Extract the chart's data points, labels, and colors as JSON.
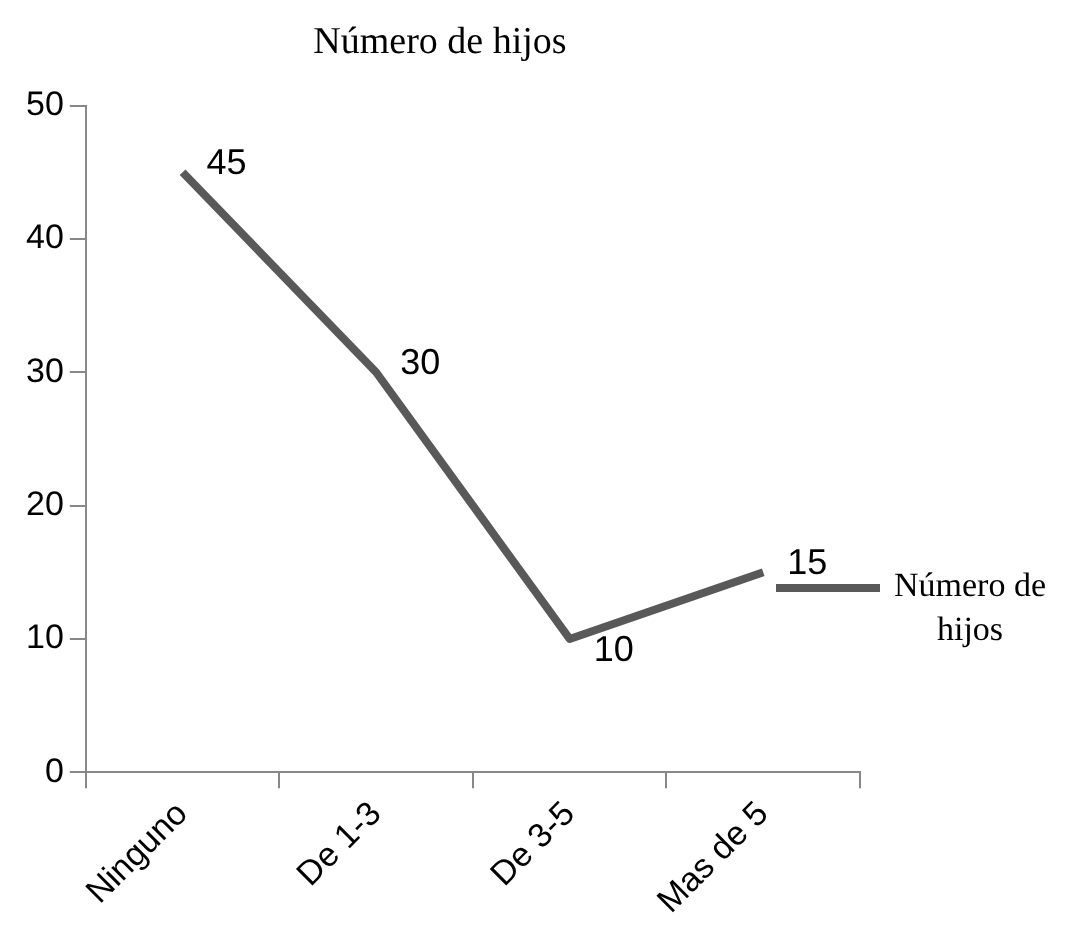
{
  "chart_data": {
    "type": "line",
    "title": "Número de hijos",
    "categories": [
      "Ninguno",
      "De 1-3",
      "De 3-5",
      "Mas de 5"
    ],
    "series": [
      {
        "name": "Número de hijos",
        "color": "#595959",
        "values": [
          45,
          30,
          10,
          15
        ]
      }
    ],
    "ylim": [
      0,
      50
    ],
    "yticks": [
      0,
      10,
      20,
      30,
      40,
      50
    ],
    "grid": false,
    "legend": "right",
    "marker": "none",
    "data_labels": true
  }
}
